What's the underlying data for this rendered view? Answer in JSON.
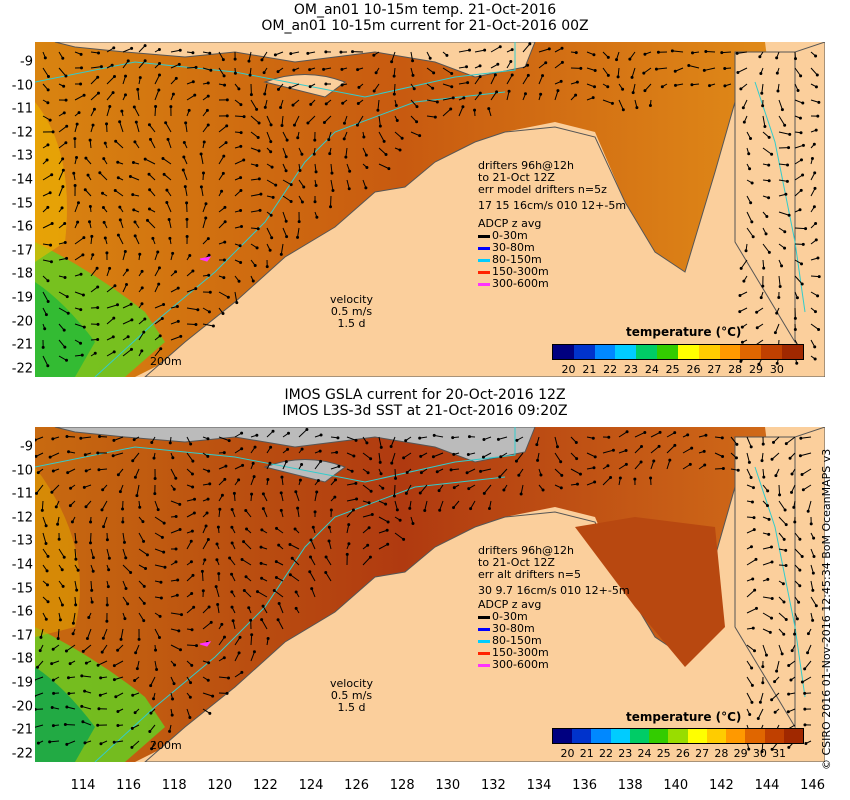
{
  "top_panel": {
    "title_line1": "OM_an01 10-15m temp. 21-Oct-2016",
    "title_line2": "OM_an01 10-15m current for 21-Oct-2016 00Z",
    "drifters": [
      "drifters 96h@12h",
      "to 21-Oct 12Z",
      "err model drifters n=5z",
      "17 15 16cm/s 010 12+-5m"
    ],
    "adcp_title": "ADCP z avg",
    "adcp": [
      {
        "label": "0-30m",
        "color": "#000000"
      },
      {
        "label": "30-80m",
        "color": "#0000ff"
      },
      {
        "label": "80-150m",
        "color": "#00ccff"
      },
      {
        "label": "150-300m",
        "color": "#ff2200"
      },
      {
        "label": "300-600m",
        "color": "#ff33ff"
      }
    ],
    "velocity": [
      "velocity",
      "0.5 m/s",
      "1.5 d"
    ],
    "isobath": "200m",
    "legend_title": "temperature (°C)",
    "ticks": [
      "20",
      "21",
      "22",
      "23",
      "24",
      "25",
      "26",
      "27",
      "28",
      "29",
      "30"
    ]
  },
  "bottom_panel": {
    "title_line1": "IMOS GSLA current for 20-Oct-2016 12Z",
    "title_line2": "IMOS L3S-3d SST at 21-Oct-2016 09:20Z",
    "drifters": [
      "drifters 96h@12h",
      "to 21-Oct 12Z",
      "err alt drifters n=5",
      "30 9.7 16cm/s 010 12+-5m"
    ],
    "adcp_title": "ADCP z avg",
    "adcp": [
      {
        "label": "0-30m",
        "color": "#000000"
      },
      {
        "label": "30-80m",
        "color": "#0000ff"
      },
      {
        "label": "80-150m",
        "color": "#00ccff"
      },
      {
        "label": "150-300m",
        "color": "#ff2200"
      },
      {
        "label": "300-600m",
        "color": "#ff33ff"
      }
    ],
    "velocity": [
      "velocity",
      "0.5 m/s",
      "1.5 d"
    ],
    "isobath": "200m",
    "legend_title": "temperature (°C)",
    "ticks": [
      "20",
      "21",
      "22",
      "23",
      "24",
      "25",
      "26",
      "27",
      "28",
      "29",
      "30",
      "31"
    ]
  },
  "lat_labels": [
    "-9",
    "-10",
    "-11",
    "-12",
    "-13",
    "-14",
    "-15",
    "-16",
    "-17",
    "-18",
    "-19",
    "-20",
    "-21",
    "-22"
  ],
  "lon_labels": [
    "114",
    "116",
    "118",
    "120",
    "122",
    "124",
    "126",
    "128",
    "130",
    "132",
    "134",
    "136",
    "138",
    "140",
    "142",
    "144",
    "146"
  ],
  "credit": "© CSIRO 2016  01-Nov-2016 12:45:34 BoM OceanMAPS v3",
  "colors": {
    "land": "#fbcf9c",
    "coast": "#555555",
    "isobath": "#33cccc",
    "colormap": [
      "#000080",
      "#0033cc",
      "#0088ff",
      "#00ccff",
      "#00cc66",
      "#33cc00",
      "#99dd00",
      "#ffff00",
      "#ffcc00",
      "#ff9900",
      "#e06600",
      "#c04000",
      "#a02800"
    ]
  }
}
